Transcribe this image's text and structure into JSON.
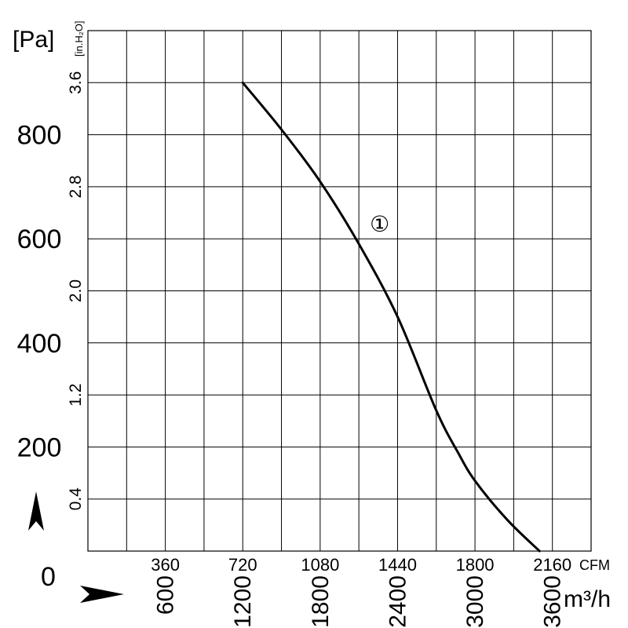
{
  "chart_data": {
    "type": "line",
    "title": "",
    "x_axis": {
      "primary_unit": "CFM",
      "primary_ticks": [
        "360",
        "720",
        "1080",
        "1440",
        "1800",
        "2160"
      ],
      "primary_range": [
        0,
        2340
      ],
      "secondary_unit": "m³/h",
      "secondary_ticks": [
        "600",
        "1200",
        "1800",
        "2400",
        "3000",
        "3600"
      ]
    },
    "y_axis": {
      "primary_unit": "[Pa]",
      "primary_ticks": [
        "200",
        "400",
        "600",
        "800"
      ],
      "primary_range": [
        0,
        1000
      ],
      "secondary_unit": "[in.H₂O]",
      "secondary_ticks": [
        "0.4",
        "1.2",
        "2.0",
        "2.8",
        "3.6"
      ]
    },
    "origin_label": "0",
    "grid": true,
    "series": [
      {
        "name": "①",
        "x": [
          720,
          900,
          1080,
          1260,
          1440,
          1620,
          1720,
          1800,
          1950,
          2100
        ],
        "y": [
          900,
          810,
          710,
          590,
          450,
          270,
          190,
          135,
          60,
          0
        ]
      }
    ]
  }
}
